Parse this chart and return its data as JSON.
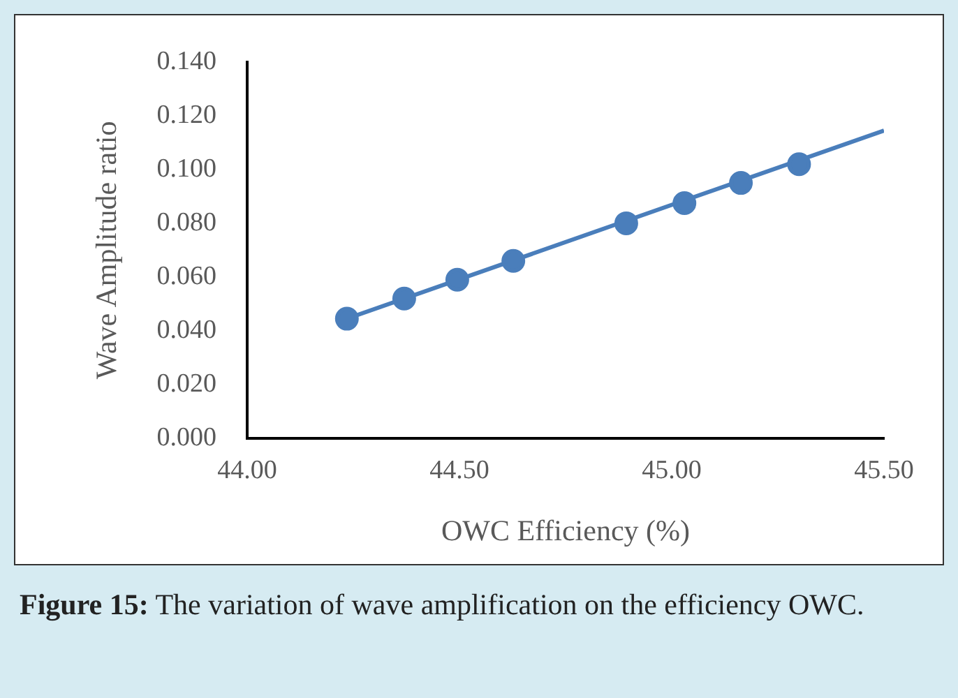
{
  "chart_data": {
    "type": "scatter",
    "xlabel": "OWC Efficiency (%)",
    "ylabel": "Wave Amplitude ratio",
    "x": [
      44.235,
      44.37,
      44.495,
      44.627,
      44.893,
      45.03,
      45.163,
      45.3
    ],
    "series": [
      {
        "color": "#4a7ebb",
        "values": [
          0.0445,
          0.052,
          0.059,
          0.066,
          0.08,
          0.0875,
          0.095,
          0.102
        ],
        "marker": "circle"
      },
      {
        "type": "line",
        "color": "#4a7ebb",
        "x": [
          44.235,
          45.5
        ],
        "values": [
          0.0445,
          0.1145
        ],
        "marker": "none"
      }
    ],
    "xlim": [
      44,
      45.5
    ],
    "xticks": [
      {
        "value": 44,
        "label": "44.00"
      },
      {
        "value": 44.5,
        "label": "44.50"
      },
      {
        "value": 45,
        "label": "45.00"
      },
      {
        "value": 45.5,
        "label": "45.50"
      }
    ],
    "ylim": [
      0,
      0.14
    ],
    "yticks": [
      {
        "value": 0,
        "label": "0.000"
      },
      {
        "value": 0.02,
        "label": "0.020"
      },
      {
        "value": 0.04,
        "label": "0.040"
      },
      {
        "value": 0.06,
        "label": "0.060"
      },
      {
        "value": 0.08,
        "label": "0.080"
      },
      {
        "value": 0.1,
        "label": "0.100"
      },
      {
        "value": 0.12,
        "label": "0.120"
      },
      {
        "value": 0.14,
        "label": "0.140"
      }
    ],
    "grid": false,
    "legend": false,
    "annotations": [
      "Figure 15: The variation of wave amplification on the efficiency OWC."
    ]
  }
}
